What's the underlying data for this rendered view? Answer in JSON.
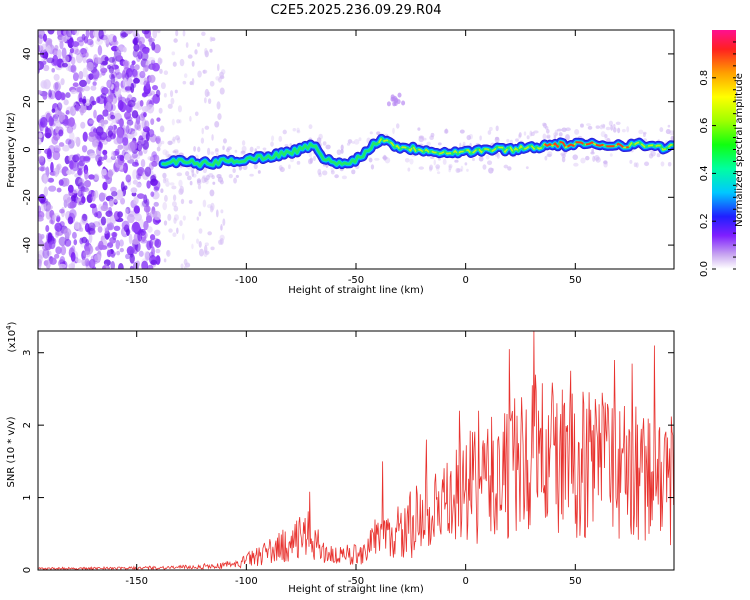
{
  "title": "C2E5.2025.236.09.29.R04",
  "colors": {
    "snr_line": "#e8322e",
    "axis": "#000000"
  },
  "chart_data": [
    {
      "type": "heatmap",
      "name": "spectrogram",
      "xlabel": "Height of straight line (km)",
      "ylabel": "Frequency (Hz)",
      "xlim": [
        -195,
        95
      ],
      "ylim": [
        -50,
        50
      ],
      "xticks": [
        -150,
        -100,
        -50,
        0,
        50
      ],
      "xtick_labels": [
        "-150",
        "-100",
        "-50",
        "0",
        "50"
      ],
      "yticks": [
        -40,
        -20,
        0,
        20,
        40
      ],
      "ytick_labels": [
        "-40",
        "-20",
        "0",
        "20",
        "40"
      ],
      "trace": {
        "x": [
          -138,
          -130,
          -120,
          -110,
          -100,
          -90,
          -80,
          -75,
          -70,
          -65,
          -60,
          -55,
          -50,
          -45,
          -42,
          -38,
          -35,
          -30,
          -20,
          -10,
          0,
          10,
          20,
          30,
          40,
          50,
          60,
          70,
          80,
          90,
          95
        ],
        "y": [
          -6,
          -5,
          -6,
          -5,
          -4,
          -3,
          -1,
          0,
          2,
          -3,
          -6,
          -6,
          -4,
          -1,
          2,
          5,
          3,
          1,
          0,
          -1,
          -1,
          0,
          0,
          1,
          2,
          2,
          2,
          2,
          2,
          1,
          1
        ]
      },
      "colorbar": {
        "label": "Normalized spectral amplitude",
        "range": [
          0,
          1
        ],
        "ticks": [
          0.0,
          0.2,
          0.4,
          0.6,
          0.8
        ],
        "tick_labels": [
          "0.0",
          "0.2",
          "0.4",
          "0.6",
          "0.8"
        ]
      }
    },
    {
      "type": "line",
      "name": "snr",
      "xlabel": "Height of straight line (km)",
      "ylabel": "SNR (10 * v/v)",
      "multiplier_label": "(x10",
      "multiplier_exp": "4",
      "xlim": [
        -195,
        95
      ],
      "ylim": [
        0,
        3.3
      ],
      "xticks": [
        -150,
        -100,
        -50,
        0,
        50
      ],
      "xtick_labels": [
        "-150",
        "-100",
        "-50",
        "0",
        "50"
      ],
      "yticks": [
        0,
        1,
        2,
        3
      ],
      "ytick_labels": [
        "0",
        "1",
        "2",
        "3"
      ],
      "envelope": {
        "x": [
          -195,
          -150,
          -120,
          -105,
          -95,
          -85,
          -78,
          -72,
          -68,
          -62,
          -55,
          -50,
          -45,
          -40,
          -35,
          -30,
          -25,
          -20,
          -15,
          -10,
          -5,
          0,
          5,
          10,
          15,
          20,
          25,
          30,
          35,
          40,
          45,
          50,
          55,
          60,
          65,
          70,
          75,
          80,
          85,
          90,
          95
        ],
        "y": [
          0.02,
          0.03,
          0.05,
          0.08,
          0.22,
          0.35,
          0.45,
          0.55,
          0.4,
          0.25,
          0.2,
          0.25,
          0.35,
          0.45,
          0.5,
          0.55,
          0.65,
          0.75,
          0.85,
          0.95,
          1.1,
          1.25,
          1.35,
          1.4,
          1.45,
          1.55,
          1.65,
          1.7,
          1.8,
          1.75,
          1.7,
          1.65,
          1.7,
          1.75,
          1.65,
          1.55,
          1.5,
          1.45,
          1.4,
          1.35,
          1.3
        ]
      },
      "peaks": {
        "x": [
          -71,
          -38,
          -18,
          -3,
          20,
          31,
          40,
          48,
          68,
          76,
          86
        ],
        "y": [
          1.08,
          1.5,
          1.8,
          2.2,
          3.05,
          3.3,
          2.4,
          2.75,
          2.9,
          2.85,
          3.1
        ]
      }
    }
  ]
}
